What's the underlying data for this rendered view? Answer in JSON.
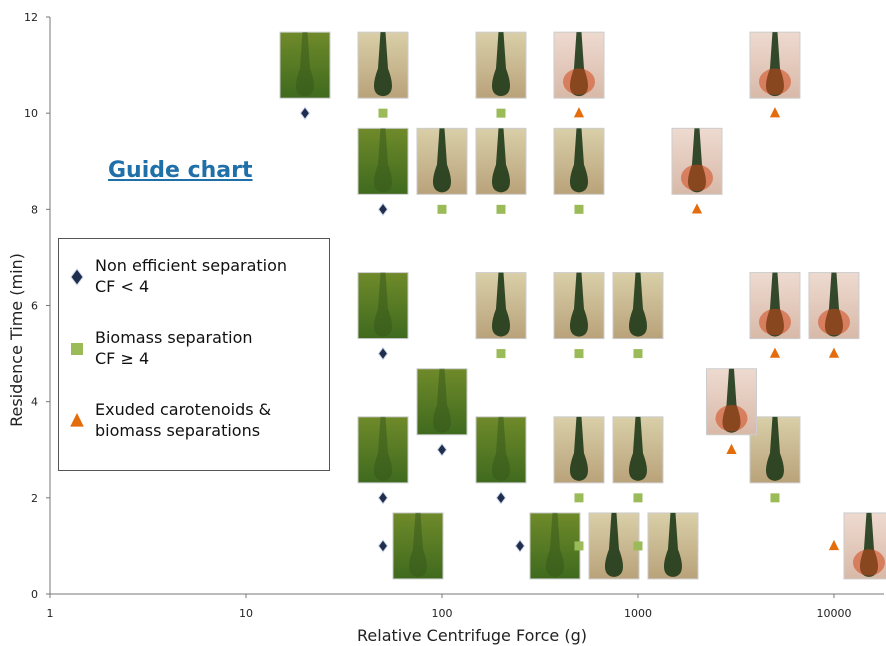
{
  "chart_data": {
    "type": "scatter",
    "title": "Guide chart",
    "x_label": "Relative Centrifuge Force (g)",
    "y_label": "Residence Time (min)",
    "log_x": true,
    "xlim": [
      1,
      18000
    ],
    "ylim": [
      0,
      12
    ],
    "xticks": [
      1,
      10,
      100,
      1000,
      10000
    ],
    "yticks": [
      0,
      2,
      4,
      6,
      8,
      10,
      12
    ],
    "series": [
      {
        "name": "Non efficient separation\nCF < 4",
        "marker": "diamond",
        "color": "#1f2d4e",
        "x": [
          20,
          50,
          50,
          100,
          50,
          200,
          50,
          250
        ],
        "values": [
          10,
          8,
          5,
          3,
          2,
          2,
          1,
          1
        ]
      },
      {
        "name": "Biomass separation\nCF ≥ 4",
        "marker": "square",
        "color": "#9bbb59",
        "x": [
          50,
          200,
          100,
          200,
          500,
          200,
          500,
          1000,
          500,
          1000,
          5000,
          500,
          1000
        ],
        "values": [
          10,
          10,
          8,
          8,
          8,
          5,
          5,
          5,
          2,
          2,
          2,
          1,
          1
        ]
      },
      {
        "name": "Exuded carotenoids &\nbiomass separations",
        "marker": "triangle",
        "color": "#e46c0a",
        "x": [
          500,
          5000,
          2000,
          5000,
          10000,
          3000,
          10000
        ],
        "values": [
          10,
          10,
          8,
          5,
          5,
          3,
          1
        ]
      }
    ]
  }
}
